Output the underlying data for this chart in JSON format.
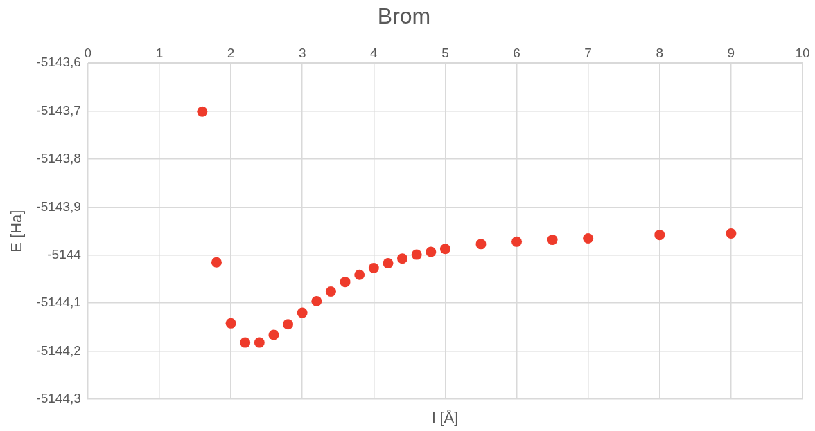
{
  "chart_data": {
    "type": "scatter",
    "title": "Brom",
    "xlabel": "l [Å]",
    "ylabel": "E [Ha]",
    "x": [
      1.6,
      1.8,
      2.0,
      2.2,
      2.4,
      2.6,
      2.8,
      3.0,
      3.2,
      3.4,
      3.6,
      3.8,
      4.0,
      4.2,
      4.4,
      4.6,
      4.8,
      5.0,
      5.5,
      6,
      6.5,
      7,
      8,
      9
    ],
    "series": [
      {
        "color": "#ee3b2b",
        "values": [
          -5143.701,
          -5144.015,
          -5144.142,
          -5144.182,
          -5144.182,
          -5144.166,
          -5144.144,
          -5144.12,
          -5144.096,
          -5144.076,
          -5144.056,
          -5144.041,
          -5144.027,
          -5144.017,
          -5144.007,
          -5143.999,
          -5143.993,
          -5143.987,
          -5143.977,
          -5143.972,
          -5143.968,
          -5143.965,
          -5143.958,
          -5143.955
        ]
      }
    ],
    "xlim": [
      0,
      10
    ],
    "xticks": [
      0,
      1,
      2,
      3,
      4,
      5,
      6,
      7,
      8,
      9,
      10
    ],
    "ylim": [
      -5144.3,
      -5143.6
    ],
    "yticks": [
      {
        "value": -5144.3,
        "label": "-5144,3"
      },
      {
        "value": -5144.2,
        "label": "-5144,2"
      },
      {
        "value": -5144.1,
        "label": "-5144,1"
      },
      {
        "value": -5144,
        "label": "-5144"
      },
      {
        "value": -5143.9,
        "label": "-5143,9"
      },
      {
        "value": -5143.8,
        "label": "-5143,8"
      },
      {
        "value": -5143.7,
        "label": "-5143,7"
      },
      {
        "value": -5143.6,
        "label": "-5143,6"
      }
    ],
    "grid": true,
    "marker": "circle"
  }
}
